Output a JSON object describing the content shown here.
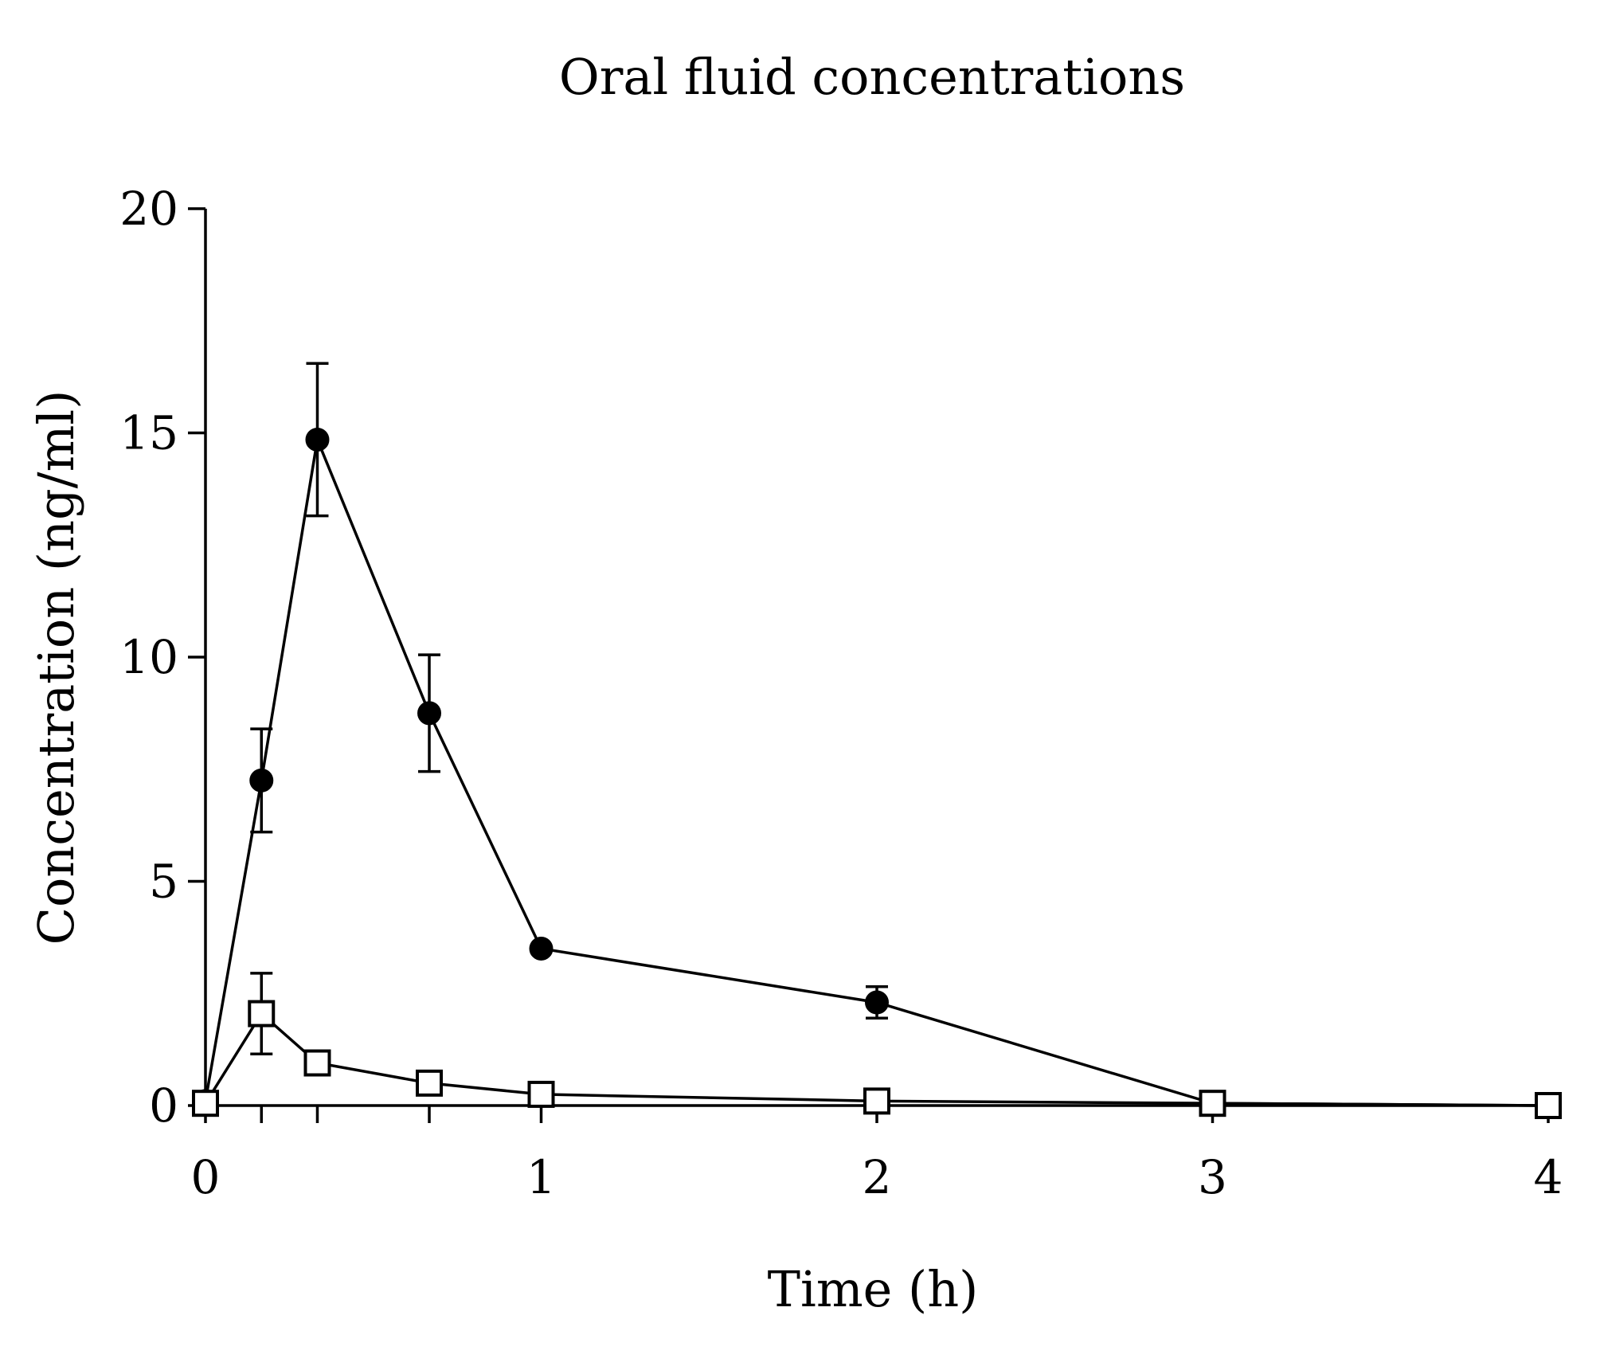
{
  "chart_data": {
    "type": "line",
    "title": "Oral fluid concentrations",
    "xlabel": "Time (h)",
    "ylabel": "Concentration (ng/ml)",
    "xlim": [
      0,
      4
    ],
    "ylim": [
      0,
      20
    ],
    "x_ticks": [
      0,
      1,
      2,
      3,
      4
    ],
    "x_tick_labels": [
      "0",
      "1",
      "2",
      "3",
      "4"
    ],
    "x_minor_ticks": [
      0.1667,
      0.3333,
      0.6667
    ],
    "y_ticks": [
      0,
      5,
      10,
      15,
      20
    ],
    "y_tick_labels": [
      "0",
      "5",
      "10",
      "15",
      "20"
    ],
    "grid": false,
    "legend": "none",
    "series": [
      {
        "marker": "filled-circle",
        "color": "#000000",
        "points": [
          {
            "x": 0,
            "y": 0.1,
            "err": 0
          },
          {
            "x": 0.1667,
            "y": 7.25,
            "err": 1.15
          },
          {
            "x": 0.3333,
            "y": 14.85,
            "err": 1.7
          },
          {
            "x": 0.6667,
            "y": 8.75,
            "err": 1.3
          },
          {
            "x": 1,
            "y": 3.5,
            "err": 0
          },
          {
            "x": 2,
            "y": 2.3,
            "err": 0.35
          },
          {
            "x": 3,
            "y": 0.05,
            "err": 0
          },
          {
            "x": 4,
            "y": 0.0,
            "err": 0
          }
        ]
      },
      {
        "marker": "open-square",
        "color": "#000000",
        "points": [
          {
            "x": 0,
            "y": 0.05,
            "err": 0
          },
          {
            "x": 0.1667,
            "y": 2.05,
            "err": 0.9
          },
          {
            "x": 0.3333,
            "y": 0.95,
            "err": 0
          },
          {
            "x": 0.6667,
            "y": 0.5,
            "err": 0
          },
          {
            "x": 1,
            "y": 0.25,
            "err": 0
          },
          {
            "x": 2,
            "y": 0.1,
            "err": 0
          },
          {
            "x": 3,
            "y": 0.05,
            "err": 0
          },
          {
            "x": 4,
            "y": 0.0,
            "err": 0
          }
        ]
      }
    ]
  }
}
